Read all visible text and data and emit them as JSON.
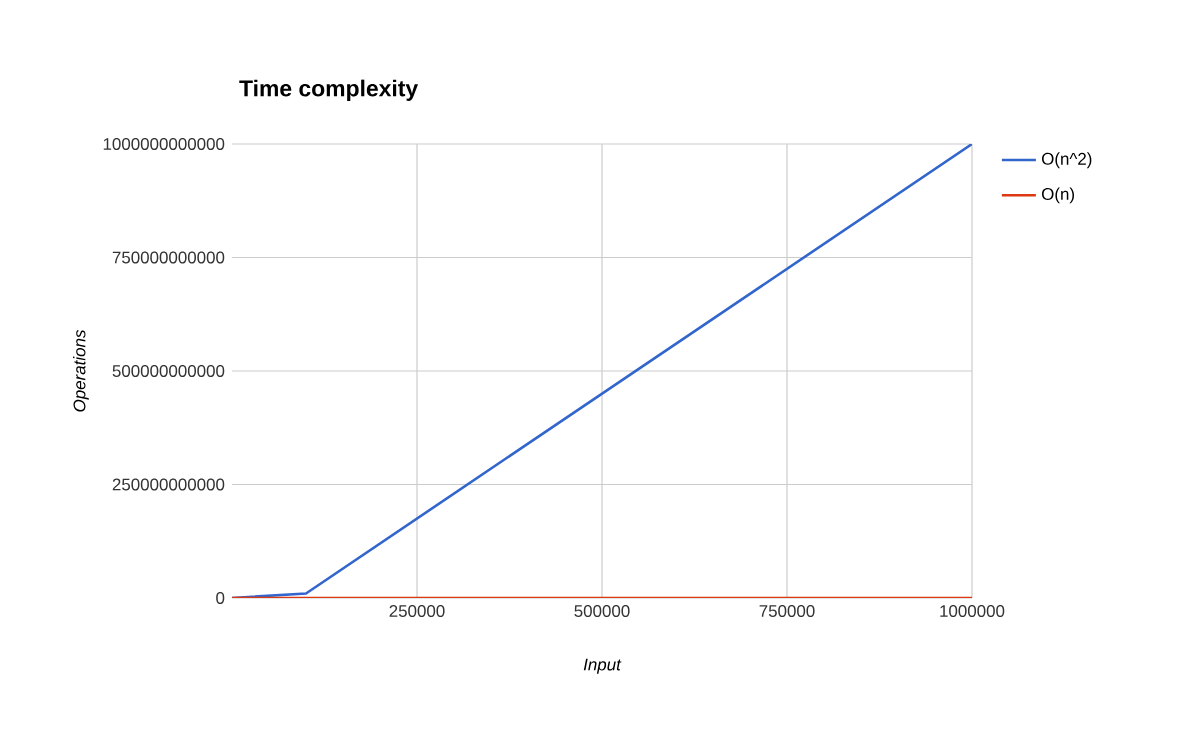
{
  "chart_data": {
    "type": "line",
    "title": "Time complexity",
    "xlabel": "Input",
    "ylabel": "Operations",
    "series": [
      {
        "name": "O(n^2)",
        "color": "#3366cc",
        "x": [
          0,
          100000,
          1000000
        ],
        "values": [
          0,
          10000000000,
          1000000000000
        ]
      },
      {
        "name": "O(n)",
        "color": "#dc3912",
        "x": [
          0,
          1000000
        ],
        "values": [
          0,
          0
        ]
      }
    ],
    "xlim": [
      0,
      1000000
    ],
    "xticks": [
      250000,
      500000,
      750000,
      1000000
    ],
    "ylim": [
      0,
      1000000000000
    ],
    "yticks": [
      0,
      250000000000,
      500000000000,
      750000000000,
      1000000000000
    ],
    "grid": true,
    "legend": "top right",
    "marker": "none",
    "line_style": "solid"
  }
}
